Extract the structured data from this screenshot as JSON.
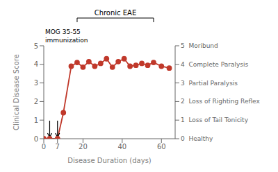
{
  "chart_data": {
    "type": "line",
    "x": [
      0,
      3,
      7,
      10,
      14,
      17,
      20,
      23,
      26,
      29,
      32,
      35,
      38,
      41,
      44,
      47,
      50,
      53,
      56,
      60,
      64
    ],
    "values": [
      0,
      0,
      0,
      1.4,
      3.9,
      4.1,
      3.85,
      4.15,
      3.9,
      4.05,
      4.3,
      3.85,
      4.15,
      4.3,
      3.9,
      3.95,
      4.05,
      3.95,
      4.1,
      3.9,
      3.8
    ],
    "color": "#C0392B",
    "marker": "circle",
    "grid": false,
    "xlabel": "Disease Duration (days)",
    "ylabel": "Clinical Disease Score",
    "xlim": [
      0,
      67
    ],
    "ylim": [
      0,
      5
    ],
    "xticks": [
      0,
      7,
      20,
      40,
      60
    ],
    "yticks": [
      0,
      1,
      2,
      3,
      4,
      5
    ],
    "y2lim": [
      0,
      5
    ],
    "y2ticks": [
      {
        "value": 0,
        "label": "0  Healthy"
      },
      {
        "value": 1,
        "label": "1  Loss of Tail Tonicity"
      },
      {
        "value": 2,
        "label": "2  Loss of Righting Reflex"
      },
      {
        "value": 3,
        "label": "3  Partial Paralysis"
      },
      {
        "value": 4,
        "label": "4  Complete Paralysis"
      },
      {
        "value": 5,
        "label": "5  Moribund"
      }
    ],
    "annotations": [
      {
        "text": "MOG 35-55\nimmunization",
        "arrows_x": [
          3,
          7
        ]
      },
      {
        "text": "Chronic EAE",
        "x_start": 17,
        "x_end": 56
      }
    ]
  }
}
